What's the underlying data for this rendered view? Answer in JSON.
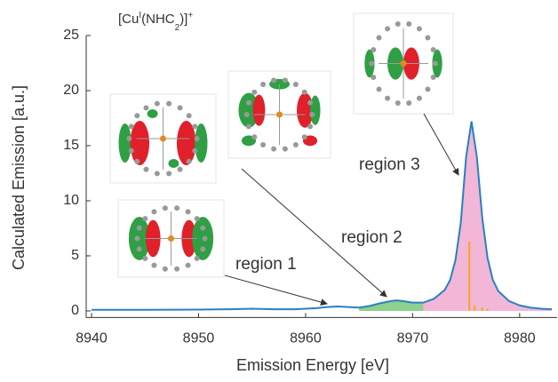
{
  "chart_data": {
    "type": "line",
    "title": [
      {
        "text": "[Cu"
      },
      {
        "text": "I",
        "sup": true
      },
      {
        "text": "(NHC"
      },
      {
        "text": "2",
        "sub": true
      },
      {
        "text": ")]"
      },
      {
        "text": "+",
        "sup": true
      }
    ],
    "x_label": "Emission Energy [eV]",
    "y_label": "Calculated Emission [a.u.]",
    "xlim": [
      8939.5,
      8983.5
    ],
    "ylim": [
      -0.6,
      25
    ],
    "xticks": [
      8940,
      8950,
      8960,
      8970,
      8980
    ],
    "yticks": [
      0,
      5,
      10,
      15,
      20,
      25
    ],
    "x": [
      8940,
      8945,
      8950,
      8953,
      8955,
      8957,
      8959,
      8961,
      8962,
      8963,
      8964,
      8965,
      8966,
      8967,
      8968,
      8968.5,
      8969,
      8970,
      8971,
      8972,
      8973,
      8973.5,
      8974,
      8974.5,
      8975,
      8975.5,
      8976,
      8976.5,
      8977,
      8977.5,
      8978,
      8979,
      8980,
      8981,
      8982,
      8983
    ],
    "series": [
      {
        "fill": true,
        "color": "#8fcf8f",
        "values": [
          null,
          null,
          null,
          null,
          null,
          null,
          null,
          null,
          null,
          null,
          null,
          0.3,
          0.45,
          0.7,
          0.9,
          0.95,
          0.9,
          0.75,
          0.75,
          null,
          null,
          null,
          null,
          null,
          null,
          null,
          null,
          null,
          null,
          null,
          null,
          null,
          null,
          null,
          null,
          null
        ]
      },
      {
        "fill": true,
        "color": "#f2b6d6",
        "values": [
          null,
          null,
          null,
          null,
          null,
          null,
          null,
          null,
          null,
          null,
          null,
          null,
          null,
          null,
          null,
          null,
          null,
          null,
          0.75,
          1.1,
          1.9,
          2.8,
          4.6,
          8.0,
          14.0,
          17.2,
          14.0,
          8.5,
          4.8,
          2.8,
          1.8,
          0.9,
          0.5,
          0.3,
          0.2,
          0.15
        ]
      },
      {
        "fill": false,
        "color": "#2a7fc4",
        "values": [
          0.1,
          0.1,
          0.12,
          0.15,
          0.2,
          0.15,
          0.15,
          0.25,
          0.35,
          0.4,
          0.35,
          0.3,
          0.45,
          0.7,
          0.9,
          0.95,
          0.9,
          0.75,
          0.75,
          1.1,
          1.9,
          2.8,
          4.6,
          8.0,
          14.0,
          17.2,
          14.0,
          8.5,
          4.8,
          2.8,
          1.8,
          0.9,
          0.5,
          0.3,
          0.2,
          0.15
        ]
      }
    ],
    "sticks": {
      "color": "#f5a623",
      "x": [
        8975.3,
        8975.8,
        8976.5,
        8977
      ],
      "values": [
        6.3,
        0.5,
        0.3,
        0.2
      ]
    },
    "annotations": [
      {
        "text": "region 1",
        "color": "#2a7fc4"
      },
      {
        "text": "region 2",
        "color": "#3aa84a"
      },
      {
        "text": "region 3",
        "color": "#e890c0"
      }
    ]
  }
}
